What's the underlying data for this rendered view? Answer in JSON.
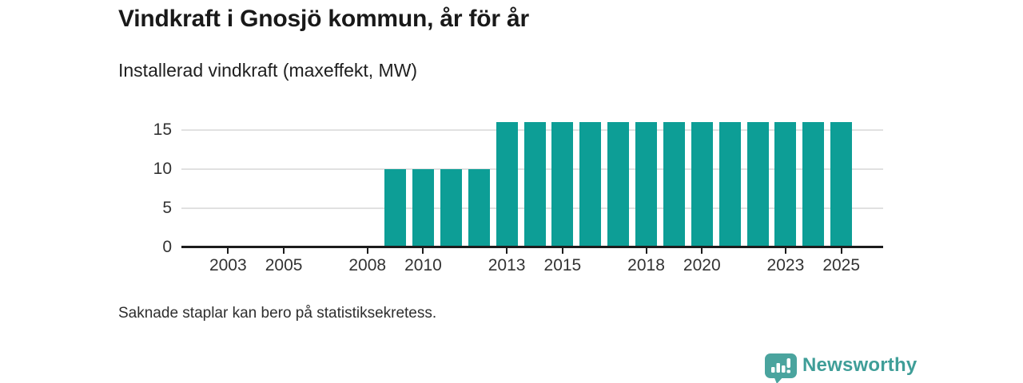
{
  "header": {
    "title": "Vindkraft i Gnosjö kommun, år för år",
    "subtitle": "Installerad vindkraft (maxeffekt, MW)"
  },
  "chart_data": {
    "type": "bar",
    "title": "Vindkraft i Gnosjö kommun, år för år",
    "subtitle": "Installerad vindkraft (maxeffekt, MW)",
    "unit": "MW",
    "x": [
      2002,
      2003,
      2004,
      2005,
      2006,
      2007,
      2008,
      2009,
      2010,
      2011,
      2012,
      2013,
      2014,
      2015,
      2016,
      2017,
      2018,
      2019,
      2020,
      2021,
      2022,
      2023,
      2024,
      2025
    ],
    "values": [
      0,
      0,
      0,
      0,
      0,
      0,
      0,
      10,
      10,
      10,
      10,
      16,
      16,
      16,
      16,
      16,
      16,
      16,
      16,
      16,
      16,
      16,
      16,
      16
    ],
    "x_tick_labels": [
      "2003",
      "2005",
      "2008",
      "2010",
      "2013",
      "2015",
      "2018",
      "2020",
      "2023",
      "2025"
    ],
    "y_ticks": [
      0,
      5,
      10,
      15
    ],
    "ylim": [
      0,
      17
    ],
    "x_domain": [
      2002,
      2026
    ],
    "grid": "horizontal",
    "legend": "none",
    "bar_color": "#0d9e96"
  },
  "footer": {
    "note": "Saknade staplar kan bero på statistiksekretess."
  },
  "brand": {
    "name": "Newsworthy",
    "color": "#3f9e98",
    "icon": "newsworthy-speech-bubble-chart-icon"
  },
  "colors": {
    "bar": "#0d9e96",
    "axis": "#1c1c1c",
    "grid": "#e1e1e1",
    "text": "#333333",
    "background": "#ffffff"
  }
}
